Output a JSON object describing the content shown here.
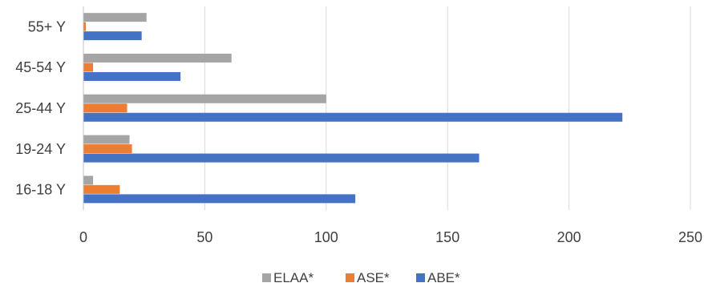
{
  "chart_data": {
    "type": "bar",
    "orientation": "horizontal",
    "categories": [
      "16-18 Y",
      "19-24 Y",
      "25-44 Y",
      "45-54 Y",
      "55+ Y"
    ],
    "series": [
      {
        "name": "ABE*",
        "color": "#4472C4",
        "values": [
          112,
          163,
          222,
          40,
          24
        ]
      },
      {
        "name": "ASE*",
        "color": "#ED7D31",
        "values": [
          15,
          20,
          18,
          4,
          1
        ]
      },
      {
        "name": "ELAA*",
        "color": "#A5A5A5",
        "values": [
          4,
          19,
          100,
          61,
          26
        ]
      }
    ],
    "xlim": [
      0,
      250
    ],
    "x_ticks": [
      "0",
      "50",
      "100",
      "150",
      "200",
      "250"
    ],
    "grid": true,
    "legend": {
      "position": "bottom",
      "order": [
        "ELAA*",
        "ASE*",
        "ABE*"
      ]
    },
    "title": "",
    "xlabel": "",
    "ylabel": ""
  }
}
